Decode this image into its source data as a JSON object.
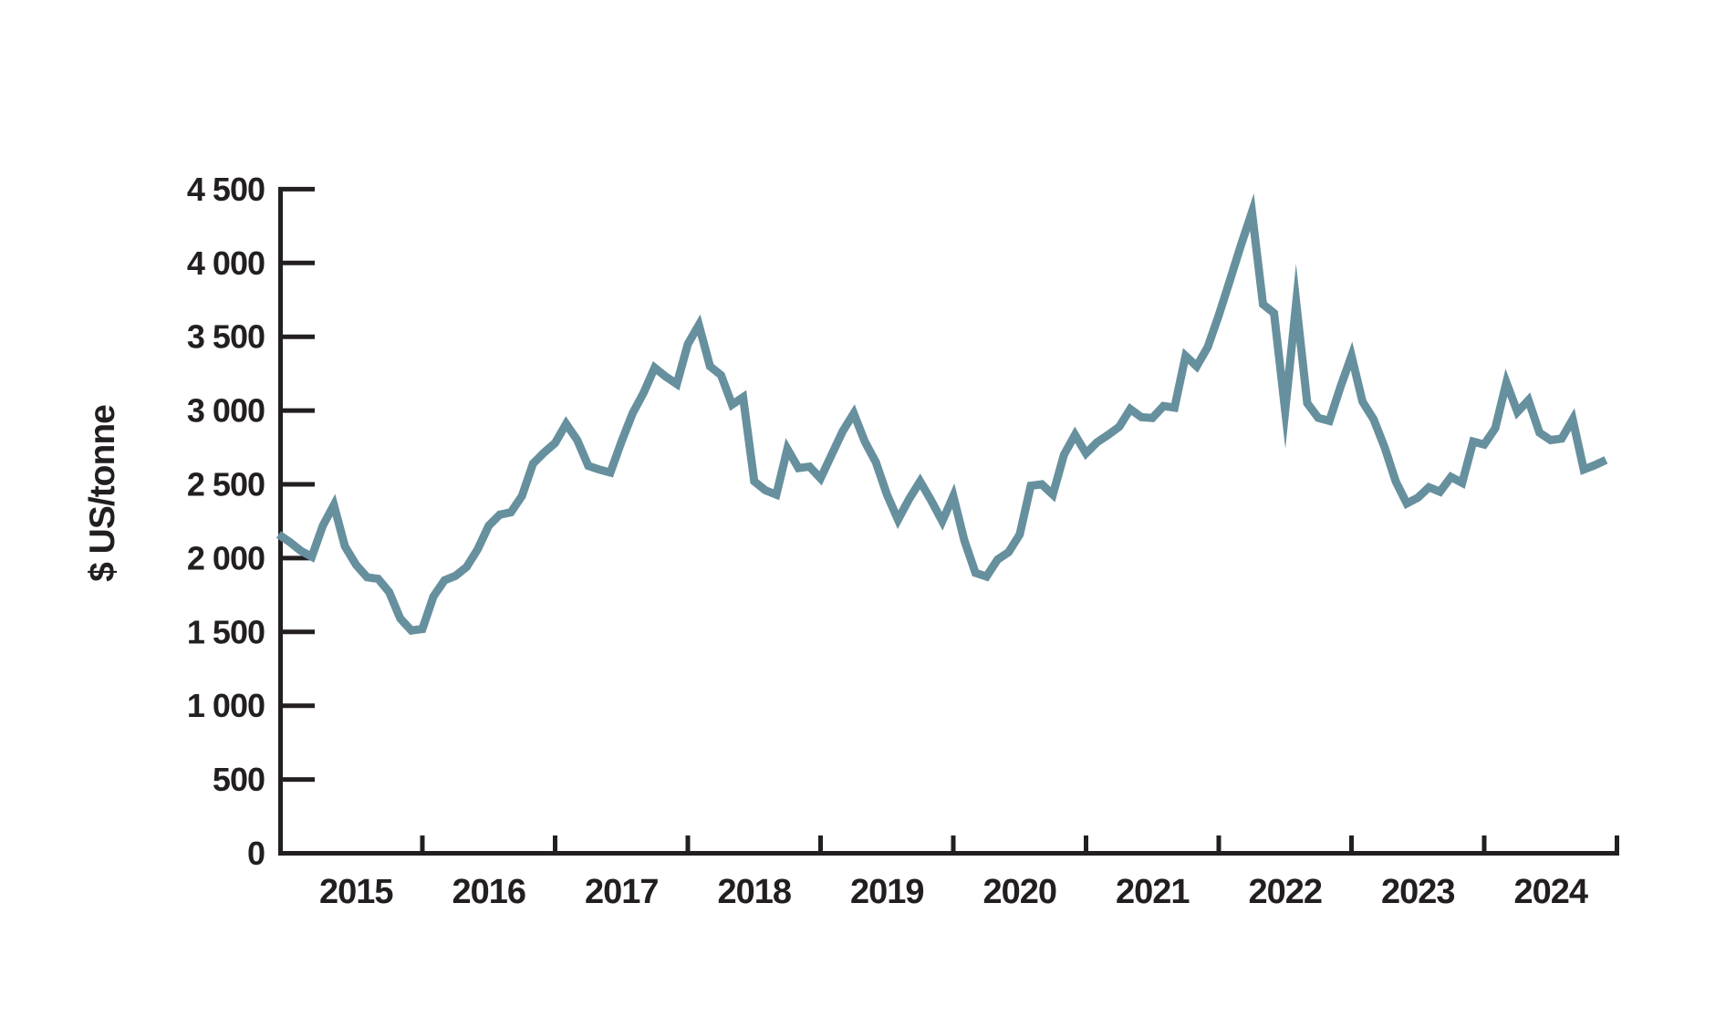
{
  "figure": {
    "background": "#ffffff",
    "axis_color": "#231f20",
    "line_color": "#67909e"
  },
  "chart_data": {
    "type": "line",
    "title": "",
    "xlabel": "",
    "ylabel": "$ US/tonne",
    "grid": false,
    "legend": "none",
    "ylim": [
      0,
      4500
    ],
    "y_ticks": [
      0,
      500,
      1000,
      1500,
      2000,
      2500,
      3000,
      3500,
      4000,
      4500
    ],
    "y_tick_labels": [
      "0",
      "500",
      "1 000",
      "1 500",
      "2 000",
      "2 500",
      "3 000",
      "3 500",
      "4 000",
      "4 500"
    ],
    "x_year_labels": [
      "2015",
      "2016",
      "2017",
      "2018",
      "2019",
      "2020",
      "2021",
      "2022",
      "2023",
      "2024"
    ],
    "x_boundary_tick_years": [
      2016,
      2017,
      2018,
      2019,
      2020,
      2021,
      2022,
      2023,
      2024,
      2025
    ],
    "xlim_decimal_years": [
      2014.9167,
      2025.0
    ],
    "series": [
      {
        "name": "Price ($ US/tonne)",
        "frequency": "monthly",
        "start": "2014-12",
        "end": "2024-12",
        "x_start_decimal_year": 2014.9167,
        "values": [
          2160,
          2110,
          2050,
          2010,
          2220,
          2360,
          2080,
          1955,
          1870,
          1860,
          1770,
          1590,
          1510,
          1520,
          1740,
          1850,
          1880,
          1940,
          2060,
          2220,
          2295,
          2310,
          2420,
          2640,
          2715,
          2780,
          2910,
          2800,
          2625,
          2600,
          2580,
          2790,
          2980,
          3120,
          3290,
          3230,
          3180,
          3450,
          3580,
          3300,
          3240,
          3040,
          3090,
          2520,
          2460,
          2430,
          2740,
          2610,
          2620,
          2540,
          2700,
          2860,
          2980,
          2790,
          2650,
          2430,
          2260,
          2400,
          2520,
          2390,
          2250,
          2420,
          2120,
          1900,
          1875,
          1990,
          2040,
          2160,
          2490,
          2500,
          2430,
          2700,
          2835,
          2710,
          2785,
          2835,
          2890,
          3010,
          2955,
          2950,
          3030,
          3020,
          3370,
          3300,
          3430,
          3645,
          3880,
          4120,
          4345,
          3720,
          3660,
          3000,
          3730,
          3050,
          2950,
          2930,
          3160,
          3370,
          3060,
          2940,
          2750,
          2520,
          2370,
          2410,
          2480,
          2450,
          2550,
          2510,
          2790,
          2770,
          2880,
          3190,
          2990,
          3070,
          2850,
          2800,
          2810,
          2940,
          2600,
          2630,
          2665
        ]
      }
    ]
  }
}
